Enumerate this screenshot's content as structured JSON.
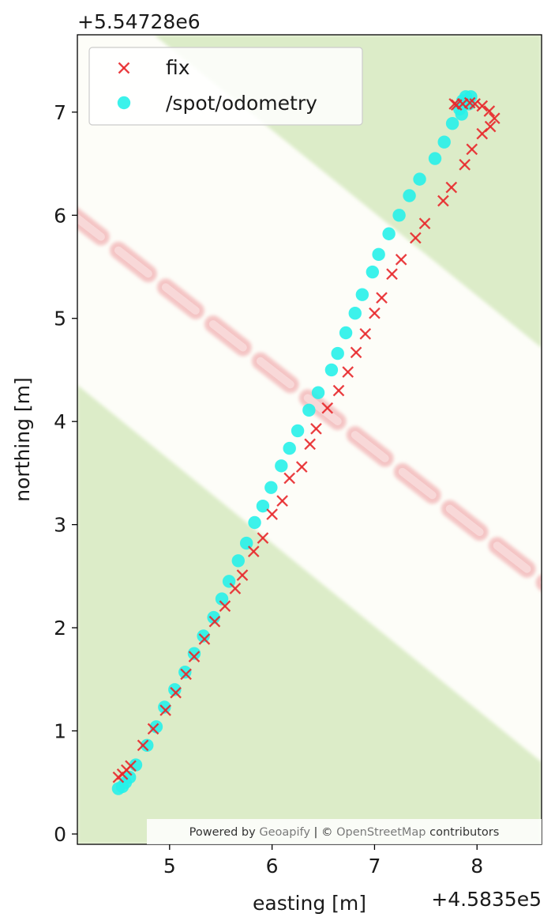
{
  "chart_data": {
    "type": "scatter",
    "title": "",
    "xlabel": "easting [m]",
    "ylabel": "northing [m]",
    "x_offset_label": "+4.5835e5",
    "y_offset_label": "+5.54728e6",
    "xlim": [
      4.1,
      8.63
    ],
    "ylim": [
      -0.1,
      7.75
    ],
    "x_ticks": [
      5,
      6,
      7,
      8
    ],
    "y_ticks": [
      0,
      1,
      2,
      3,
      4,
      5,
      6,
      7
    ],
    "grid": false,
    "legend_position": "top-left",
    "attribution": {
      "prefix": "Powered by ",
      "provider": "Geoapify",
      "separator": " | © ",
      "osm": "OpenStreetMap",
      "suffix": " contributors"
    },
    "series": [
      {
        "name": "fix",
        "marker": "x",
        "color": "#e8282b",
        "points": [
          [
            4.5,
            0.55
          ],
          [
            4.54,
            0.58
          ],
          [
            4.58,
            0.62
          ],
          [
            4.62,
            0.66
          ],
          [
            4.74,
            0.86
          ],
          [
            4.84,
            1.02
          ],
          [
            4.96,
            1.2
          ],
          [
            5.06,
            1.37
          ],
          [
            5.16,
            1.55
          ],
          [
            5.24,
            1.72
          ],
          [
            5.34,
            1.89
          ],
          [
            5.44,
            2.06
          ],
          [
            5.54,
            2.21
          ],
          [
            5.64,
            2.38
          ],
          [
            5.71,
            2.51
          ],
          [
            5.82,
            2.74
          ],
          [
            5.91,
            2.87
          ],
          [
            6.0,
            3.1
          ],
          [
            6.1,
            3.23
          ],
          [
            6.17,
            3.45
          ],
          [
            6.29,
            3.56
          ],
          [
            6.37,
            3.78
          ],
          [
            6.43,
            3.93
          ],
          [
            6.54,
            4.13
          ],
          [
            6.65,
            4.3
          ],
          [
            6.74,
            4.48
          ],
          [
            6.82,
            4.67
          ],
          [
            6.91,
            4.85
          ],
          [
            7.0,
            5.05
          ],
          [
            7.07,
            5.2
          ],
          [
            7.17,
            5.43
          ],
          [
            7.26,
            5.57
          ],
          [
            7.4,
            5.78
          ],
          [
            7.49,
            5.92
          ],
          [
            7.67,
            6.14
          ],
          [
            7.75,
            6.27
          ],
          [
            7.88,
            6.49
          ],
          [
            7.95,
            6.64
          ],
          [
            8.05,
            6.79
          ],
          [
            8.13,
            6.86
          ],
          [
            8.17,
            6.94
          ],
          [
            8.12,
            7.01
          ],
          [
            8.05,
            7.06
          ],
          [
            7.98,
            7.08
          ],
          [
            7.93,
            7.09
          ],
          [
            7.86,
            7.08
          ],
          [
            7.8,
            7.07
          ],
          [
            7.78,
            7.08
          ]
        ]
      },
      {
        "name": "/spot/odometry",
        "marker": "o",
        "color": "#27f1e9",
        "points": [
          [
            4.5,
            0.44
          ],
          [
            4.54,
            0.46
          ],
          [
            4.57,
            0.5
          ],
          [
            4.61,
            0.55
          ],
          [
            4.67,
            0.67
          ],
          [
            4.78,
            0.86
          ],
          [
            4.87,
            1.04
          ],
          [
            4.95,
            1.23
          ],
          [
            5.05,
            1.4
          ],
          [
            5.15,
            1.57
          ],
          [
            5.24,
            1.75
          ],
          [
            5.33,
            1.92
          ],
          [
            5.43,
            2.1
          ],
          [
            5.51,
            2.28
          ],
          [
            5.58,
            2.45
          ],
          [
            5.67,
            2.65
          ],
          [
            5.75,
            2.82
          ],
          [
            5.83,
            3.02
          ],
          [
            5.91,
            3.18
          ],
          [
            5.99,
            3.36
          ],
          [
            6.09,
            3.57
          ],
          [
            6.17,
            3.74
          ],
          [
            6.25,
            3.91
          ],
          [
            6.36,
            4.11
          ],
          [
            6.45,
            4.28
          ],
          [
            6.58,
            4.5
          ],
          [
            6.64,
            4.66
          ],
          [
            6.72,
            4.86
          ],
          [
            6.81,
            5.05
          ],
          [
            6.88,
            5.23
          ],
          [
            6.98,
            5.45
          ],
          [
            7.04,
            5.62
          ],
          [
            7.14,
            5.82
          ],
          [
            7.24,
            6.0
          ],
          [
            7.34,
            6.19
          ],
          [
            7.44,
            6.35
          ],
          [
            7.59,
            6.55
          ],
          [
            7.68,
            6.71
          ],
          [
            7.76,
            6.89
          ],
          [
            7.83,
            7.03
          ],
          [
            7.86,
            7.11
          ],
          [
            7.89,
            7.15
          ],
          [
            7.94,
            7.15
          ],
          [
            7.92,
            7.08
          ],
          [
            7.85,
            6.98
          ]
        ]
      }
    ]
  }
}
